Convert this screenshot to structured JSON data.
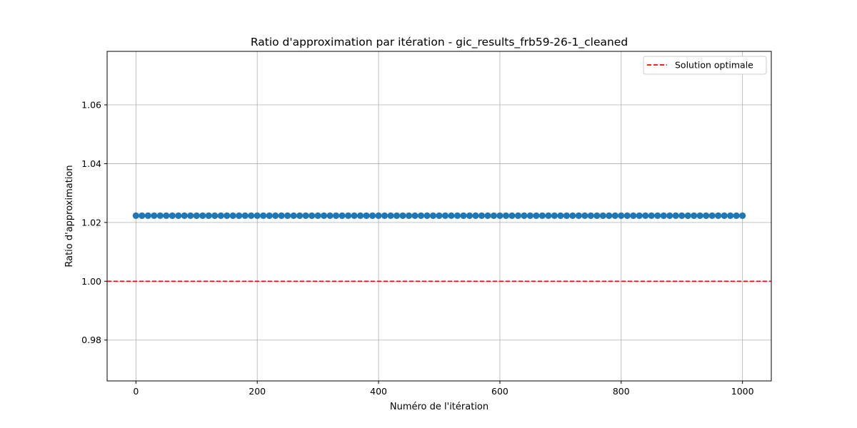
{
  "chart_data": {
    "type": "scatter",
    "title": "Ratio d'approximation par itération - gic_results_frb59-26-1_cleaned",
    "xlabel": "Numéro de l'itération",
    "ylabel": "Ratio d'approximation",
    "xlim": [
      -47.5,
      1047.5
    ],
    "ylim": [
      0.9661,
      1.0782
    ],
    "xticks": [
      0,
      200,
      400,
      600,
      800,
      1000
    ],
    "yticks": [
      0.98,
      1.0,
      1.02,
      1.04,
      1.06
    ],
    "xtick_labels": [
      "0",
      "200",
      "400",
      "600",
      "800",
      "1000"
    ],
    "ytick_labels": [
      "0.98",
      "1.00",
      "1.02",
      "1.04",
      "1.06"
    ],
    "grid": true,
    "series": [
      {
        "x_start": 0,
        "x_end": 1000,
        "x_step": 10,
        "y_constant": 1.0223,
        "color": "#1f77b4",
        "marker": "circle"
      }
    ],
    "reference_lines": [
      {
        "name": "Solution optimale",
        "y": 1.0,
        "color": "#ff0000",
        "style": "dashed"
      }
    ],
    "legend": {
      "placement": "top-right",
      "entries": [
        "Solution optimale"
      ]
    }
  }
}
